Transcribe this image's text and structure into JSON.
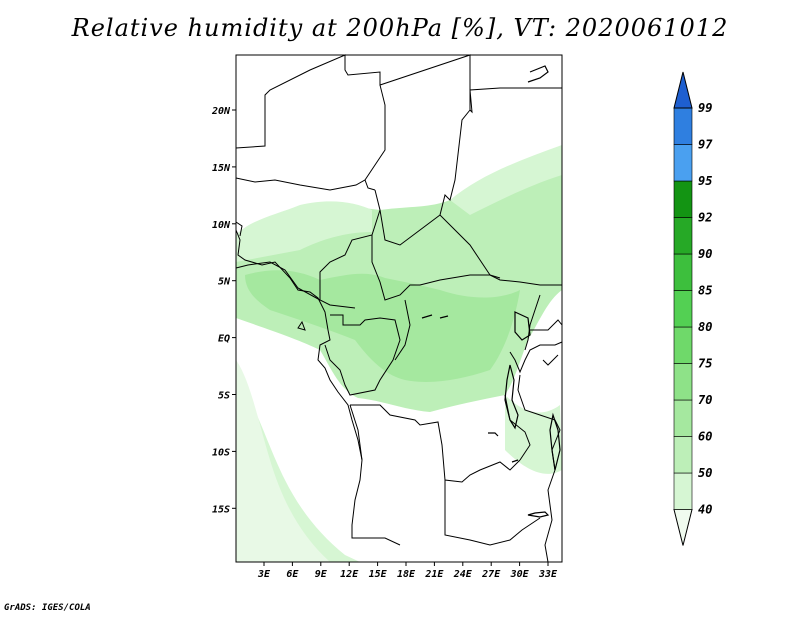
{
  "title": "Relative humidity at 200hPa [%], VT: 2020061012",
  "credit": "GrADS: IGES/COLA",
  "map": {
    "variable": "Relative humidity",
    "level": "200hPa",
    "units": "%",
    "valid_time": "2020061012",
    "lon_ticks": [
      "3E",
      "6E",
      "9E",
      "12E",
      "15E",
      "18E",
      "21E",
      "24E",
      "27E",
      "30E",
      "33E"
    ],
    "lat_ticks": [
      "20N",
      "15N",
      "10N",
      "5N",
      "EQ",
      "5S",
      "10S",
      "15S"
    ],
    "colorbar": {
      "levels": [
        "40",
        "50",
        "60",
        "70",
        "75",
        "80",
        "85",
        "90",
        "92",
        "95",
        "97",
        "99"
      ],
      "colors": [
        "#f0fbef",
        "#d6f6d3",
        "#bdefb8",
        "#a5e89f",
        "#8ee288",
        "#6fd96a",
        "#53d053",
        "#3dbf3d",
        "#26a926",
        "#139413",
        "#4aa0f0",
        "#2f7fe0",
        "#1e5fd0"
      ]
    }
  }
}
